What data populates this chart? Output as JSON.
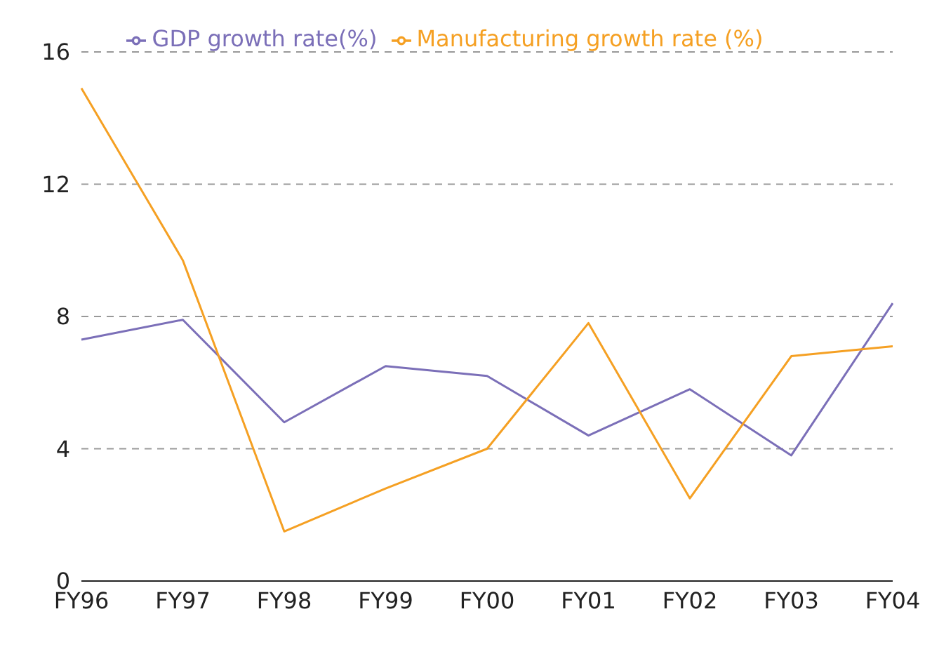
{
  "chart_data": {
    "type": "line",
    "categories": [
      "FY96",
      "FY97",
      "FY98",
      "FY99",
      "FY00",
      "FY01",
      "FY02",
      "FY03",
      "FY04"
    ],
    "series": [
      {
        "name": "GDP growth rate(%)",
        "color": "#7b6fb8",
        "values": [
          7.3,
          7.9,
          4.8,
          6.5,
          6.2,
          4.4,
          5.8,
          3.8,
          8.4
        ]
      },
      {
        "name": "Manufacturing growth rate (%)",
        "color": "#f5a023",
        "values": [
          14.9,
          9.7,
          1.5,
          2.8,
          4.0,
          7.8,
          2.5,
          6.8,
          7.1
        ]
      }
    ],
    "ylim": [
      0,
      16
    ],
    "yticks": [
      0,
      4,
      8,
      12,
      16
    ],
    "grid": "y",
    "legend": "top",
    "marker": "none",
    "line_style": "solid"
  }
}
